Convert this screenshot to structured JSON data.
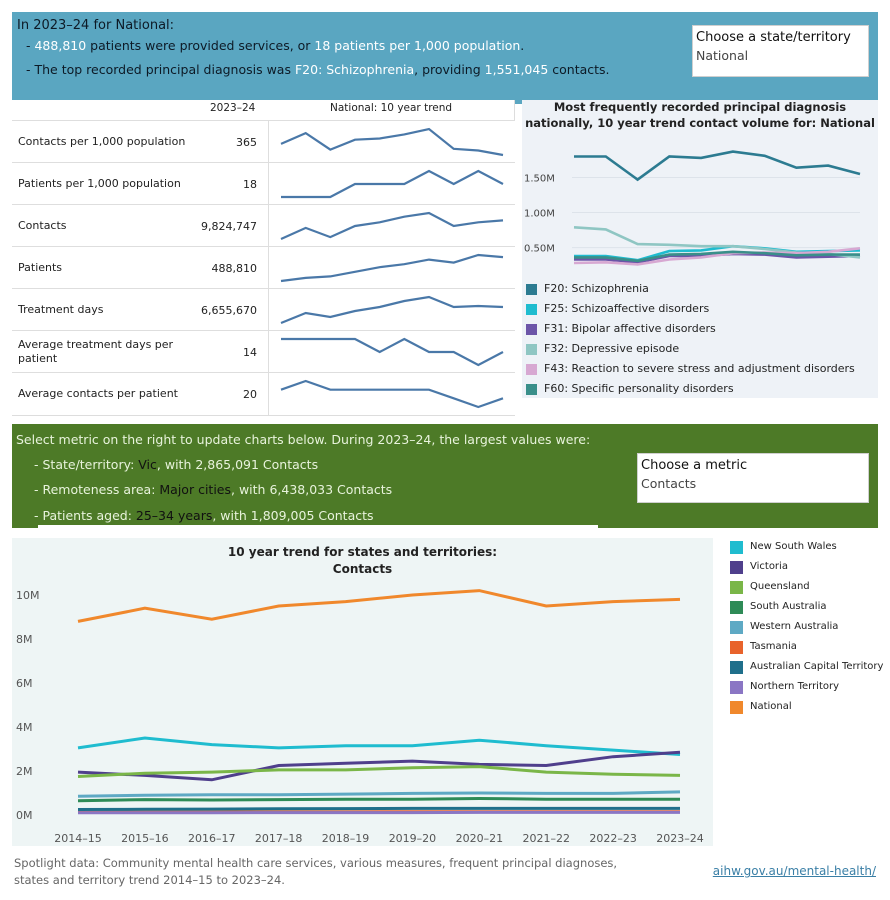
{
  "top_banner": {
    "title_prefix": "In 2023–24 for",
    "title_region": "National:",
    "bullet1_prefix": "- ",
    "bullet1_patients": "488,810",
    "bullet1_mid": " patients were provided services, or ",
    "bullet1_rate": "18 patients per 1,000 population",
    "bullet1_end": ".",
    "bullet2_prefix": "- The top recorded principal diagnosis was ",
    "bullet2_diag": "F20: Schizophrenia",
    "bullet2_mid": ", providing ",
    "bullet2_contacts": "1,551,045",
    "bullet2_end": " contacts."
  },
  "state_selector": {
    "label": "Choose a state/territory",
    "value": "National"
  },
  "metrics": {
    "col_year": "2023–24",
    "col_trend": "National: 10 year trend",
    "rows": [
      {
        "name": "Contacts per 1,000 population",
        "value": "365",
        "trend": [
          352,
          378,
          338,
          362,
          365,
          375,
          388,
          340,
          336,
          325
        ]
      },
      {
        "name": "Patients per 1,000 population",
        "value": "18",
        "trend": [
          16,
          16,
          16,
          17,
          17,
          17,
          18,
          17,
          18,
          17
        ]
      },
      {
        "name": "Contacts",
        "value": "9,824,747",
        "trend": [
          8.8,
          9.4,
          8.9,
          9.5,
          9.7,
          10.0,
          10.2,
          9.5,
          9.7,
          9.8
        ]
      },
      {
        "name": "Patients",
        "value": "488,810",
        "trend": [
          410,
          420,
          425,
          440,
          455,
          465,
          480,
          470,
          495,
          488
        ]
      },
      {
        "name": "Treatment days",
        "value": "6,655,670",
        "trend": [
          5.9,
          6.4,
          6.2,
          6.5,
          6.7,
          7.0,
          7.2,
          6.7,
          6.75,
          6.7
        ]
      },
      {
        "name": "Average treatment days per patient",
        "value": "14",
        "trend": [
          15,
          15,
          15,
          15,
          14,
          15,
          14,
          14,
          13,
          14
        ]
      },
      {
        "name": "Average contacts per patient",
        "value": "20",
        "trend": [
          21,
          22,
          21,
          21,
          21,
          21,
          21,
          20,
          19,
          20
        ]
      }
    ]
  },
  "diag_chart": {
    "title": "Most frequently recorded principal diagnosis nationally, 10 year trend contact volume for: National",
    "y_ticks": [
      "1.50M",
      "1.00M",
      "0.50M"
    ],
    "series": [
      {
        "name": "F20: Schizophrenia",
        "color": "#2c7b91",
        "values": [
          1.8,
          1.8,
          1.47,
          1.8,
          1.78,
          1.87,
          1.81,
          1.64,
          1.67,
          1.55
        ]
      },
      {
        "name": "F25: Schizoaffective disorders",
        "color": "#1fbccf",
        "values": [
          0.38,
          0.38,
          0.32,
          0.45,
          0.46,
          0.52,
          0.49,
          0.44,
          0.45,
          0.46
        ]
      },
      {
        "name": "F31: Bipolar affective disorders",
        "color": "#6c55a8",
        "values": [
          0.33,
          0.33,
          0.29,
          0.38,
          0.38,
          0.41,
          0.4,
          0.36,
          0.37,
          0.38
        ]
      },
      {
        "name": "F32: Depressive episode",
        "color": "#8fc6c3",
        "values": [
          0.79,
          0.76,
          0.55,
          0.54,
          0.52,
          0.52,
          0.48,
          0.43,
          0.41,
          0.36
        ]
      },
      {
        "name": "F43: Reaction to severe stress and adjustment disorders",
        "color": "#d7a8d2",
        "values": [
          0.28,
          0.29,
          0.26,
          0.33,
          0.36,
          0.42,
          0.43,
          0.42,
          0.44,
          0.49
        ]
      },
      {
        "name": "F60: Specific personality disorders",
        "color": "#3a8f8a",
        "values": [
          0.36,
          0.36,
          0.31,
          0.4,
          0.41,
          0.44,
          0.42,
          0.39,
          0.4,
          0.4
        ]
      }
    ]
  },
  "green_banner": {
    "intro": "Select metric on the right to update charts below. During 2023–24, the largest values were:",
    "state_prefix": "- State/territory: ",
    "state_value": "Vic",
    "state_suffix": ", with 2,865,091 Contacts",
    "remote_prefix": "- Remoteness area: ",
    "remote_value": "Major cities",
    "remote_suffix": ", with 6,438,033 Contacts",
    "age_prefix": "- Patients aged: ",
    "age_value": "25–34 years",
    "age_suffix": ", with 1,809,005 Contacts"
  },
  "metric_selector": {
    "label": "Choose a metric",
    "value": "Contacts"
  },
  "chart_data": {
    "type": "line",
    "title": "10 year trend for states and territories:",
    "subtitle": "Contacts",
    "x": [
      "2014–15",
      "2015–16",
      "2016–17",
      "2017–18",
      "2018–19",
      "2019–20",
      "2020–21",
      "2021–22",
      "2022–23",
      "2023–24"
    ],
    "y_ticks": [
      "0M",
      "2M",
      "4M",
      "6M",
      "8M",
      "10M"
    ],
    "ylim": [
      0,
      10.5
    ],
    "series": [
      {
        "name": "New South Wales",
        "color": "#1fbccf",
        "values": [
          3.05,
          3.5,
          3.2,
          3.05,
          3.15,
          3.15,
          3.4,
          3.15,
          2.95,
          2.75
        ]
      },
      {
        "name": "Victoria",
        "color": "#4f3f8c",
        "values": [
          1.95,
          1.8,
          1.6,
          2.25,
          2.35,
          2.45,
          2.3,
          2.25,
          2.65,
          2.85
        ]
      },
      {
        "name": "Queensland",
        "color": "#7ab648",
        "values": [
          1.75,
          1.9,
          1.95,
          2.05,
          2.05,
          2.15,
          2.2,
          1.95,
          1.85,
          1.8
        ]
      },
      {
        "name": "South Australia",
        "color": "#2e8b57",
        "values": [
          0.65,
          0.7,
          0.68,
          0.7,
          0.72,
          0.72,
          0.75,
          0.72,
          0.72,
          0.72
        ]
      },
      {
        "name": "Western Australia",
        "color": "#5ea9c4",
        "values": [
          0.85,
          0.9,
          0.92,
          0.92,
          0.95,
          0.98,
          1.0,
          0.98,
          0.98,
          1.05
        ]
      },
      {
        "name": "Tasmania",
        "color": "#e8632b",
        "values": [
          0.12,
          0.13,
          0.13,
          0.14,
          0.14,
          0.15,
          0.15,
          0.15,
          0.15,
          0.15
        ]
      },
      {
        "name": "Australian Capital Territory",
        "color": "#1f6f8b",
        "values": [
          0.25,
          0.26,
          0.27,
          0.28,
          0.29,
          0.3,
          0.3,
          0.3,
          0.3,
          0.3
        ]
      },
      {
        "name": "Northern Territory",
        "color": "#8a76c4",
        "values": [
          0.1,
          0.1,
          0.1,
          0.11,
          0.11,
          0.11,
          0.12,
          0.12,
          0.12,
          0.12
        ]
      },
      {
        "name": "National",
        "color": "#f0882c",
        "values": [
          8.8,
          9.4,
          8.9,
          9.5,
          9.7,
          10.0,
          10.2,
          9.5,
          9.7,
          9.8
        ]
      }
    ]
  },
  "footer": {
    "line1": "Spotlight data: Community mental health care services, various measures, frequent principal diagnoses,",
    "line2": "states and territory trend 2014–15 to 2023–24.",
    "link": "aihw.gov.au/mental-health/"
  }
}
